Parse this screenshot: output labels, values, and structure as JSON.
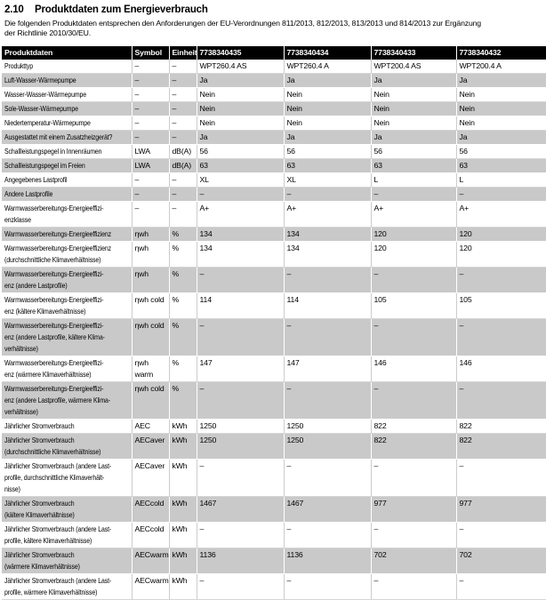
{
  "page": {
    "section_number": "2.10",
    "title": "Produktdaten zum Energieverbrauch",
    "intro": "Die folgenden Produktdaten entsprechen den Anforderungen der EU-Verordnungen 811/2013, 812/2013, 813/2013 und 814/2013 zur Ergänzung\nder Richtlinie 2010/30/EU."
  },
  "colors": {
    "header_bg": "#000000",
    "header_text": "#ffffff",
    "row_alt_bg": "#c9c9c9"
  },
  "table": {
    "headers": [
      "Produktdaten",
      "Symbol",
      "Einheit",
      "7738340435",
      "7738340434",
      "7738340433",
      "7738340432"
    ],
    "rows": [
      {
        "label": "Produkttyp",
        "symbol": "–",
        "unit": "–",
        "values": [
          "WPT260.4 AS",
          "WPT260.4 A",
          "WPT200.4 AS",
          "WPT200.4 A"
        ]
      },
      {
        "label": "Luft-Wasser-Wärmepumpe",
        "symbol": "–",
        "unit": "–",
        "values": [
          "Ja",
          "Ja",
          "Ja",
          "Ja"
        ]
      },
      {
        "label": "Wasser-Wasser-Wärmepumpe",
        "symbol": "–",
        "unit": "–",
        "values": [
          "Nein",
          "Nein",
          "Nein",
          "Nein"
        ]
      },
      {
        "label": "Sole-Wasser-Wärmepumpe",
        "symbol": "–",
        "unit": "–",
        "values": [
          "Nein",
          "Nein",
          "Nein",
          "Nein"
        ]
      },
      {
        "label": "Niedertemperatur-Wärmepumpe",
        "symbol": "–",
        "unit": "–",
        "values": [
          "Nein",
          "Nein",
          "Nein",
          "Nein"
        ]
      },
      {
        "label": "Ausgestattet mit einem Zusatzheizgerät?",
        "symbol": "–",
        "unit": "–",
        "values": [
          "Ja",
          "Ja",
          "Ja",
          "Ja"
        ]
      },
      {
        "label": "Schallleistungspegel in Innenräumen",
        "symbol": "LWA",
        "unit": "dB(A)",
        "values": [
          "56",
          "56",
          "56",
          "56"
        ]
      },
      {
        "label": "Schallleistungspegel im Freien",
        "symbol": "LWA",
        "unit": "dB(A)",
        "values": [
          "63",
          "63",
          "63",
          "63"
        ]
      },
      {
        "label": "Angegebenes Lastprofil",
        "symbol": "–",
        "unit": "–",
        "values": [
          "XL",
          "XL",
          "L",
          "L"
        ]
      },
      {
        "label": "Andere Lastprofile",
        "symbol": "–",
        "unit": "–",
        "values": [
          "–",
          "–",
          "–",
          "–"
        ]
      },
      {
        "label": "Warmwasserbereitungs-Energieeffizi-\nenzklasse",
        "symbol": "–",
        "unit": "–",
        "values": [
          "A+",
          "A+",
          "A+",
          "A+"
        ]
      },
      {
        "label": "Warmwasserbereitungs-Energieeffizienz",
        "symbol": "ηwh",
        "unit": "%",
        "values": [
          "134",
          "134",
          "120",
          "120"
        ]
      },
      {
        "label": "Warmwasserbereitungs-Energieeffizienz\n(durchschnittliche Klimaverhältnisse)",
        "symbol": "ηwh",
        "unit": "%",
        "values": [
          "134",
          "134",
          "120",
          "120"
        ]
      },
      {
        "label": "Warmwasserbereitungs-Energieeffizi-\nenz (andere Lastprofile)",
        "symbol": "ηwh",
        "unit": "%",
        "values": [
          "–",
          "–",
          "–",
          "–"
        ]
      },
      {
        "label": "Warmwasserbereitungs-Energieeffizi-\nenz (kältere Klimaverhältnisse)",
        "symbol": "ηwh cold",
        "unit": "%",
        "values": [
          "114",
          "114",
          "105",
          "105"
        ]
      },
      {
        "label": "Warmwasserbereitungs-Energieeffizi-\nenz (andere Lastprofile, kältere Klima-\nverhältnisse)",
        "symbol": "ηwh cold",
        "unit": "%",
        "values": [
          "–",
          "–",
          "–",
          "–"
        ]
      },
      {
        "label": "Warmwasserbereitungs-Energieeffizi-\nenz (wärmere Klimaverhältnisse)",
        "symbol": "ηwh warm",
        "unit": "%",
        "values": [
          "147",
          "147",
          "146",
          "146"
        ]
      },
      {
        "label": "Warmwasserbereitungs-Energieeffizi-\nenz (andere Lastprofile, wärmere Klima-\nverhältnisse)",
        "symbol": "ηwh cold",
        "unit": "%",
        "values": [
          "–",
          "–",
          "–",
          "–"
        ]
      },
      {
        "label": "Jährlicher Stromverbrauch",
        "symbol": "AEC",
        "unit": "kWh",
        "values": [
          "1250",
          "1250",
          "822",
          "822"
        ]
      },
      {
        "label": "Jährlicher Stromverbrauch\n(durchschnittliche Klimaverhältnisse)",
        "symbol": "AECaver",
        "unit": "kWh",
        "values": [
          "1250",
          "1250",
          "822",
          "822"
        ]
      },
      {
        "label": "Jährlicher Stromverbrauch (andere Last-\nprofile, durchschnittliche Klimaverhält-\nnisse)",
        "symbol": "AECaver",
        "unit": "kWh",
        "values": [
          "–",
          "–",
          "–",
          "–"
        ]
      },
      {
        "label": "Jährlicher Stromverbrauch\n(kältere Klimaverhältnisse)",
        "symbol": "AECcold",
        "unit": "kWh",
        "values": [
          "1467",
          "1467",
          "977",
          "977"
        ]
      },
      {
        "label": "Jährlicher Stromverbrauch (andere Last-\nprofile, kältere Klimaverhältnisse)",
        "symbol": "AECcold",
        "unit": "kWh",
        "values": [
          "–",
          "–",
          "–",
          "–"
        ]
      },
      {
        "label": "Jährlicher Stromverbrauch\n(wärmere Klimaverhältnisse)",
        "symbol": "AECwarm",
        "unit": "kWh",
        "values": [
          "1136",
          "1136",
          "702",
          "702"
        ]
      },
      {
        "label": "Jährlicher Stromverbrauch (andere Last-\nprofile, wärmere Klimaverhältnisse)",
        "symbol": "AECwarm",
        "unit": "kWh",
        "values": [
          "–",
          "–",
          "–",
          "–"
        ]
      }
    ]
  }
}
